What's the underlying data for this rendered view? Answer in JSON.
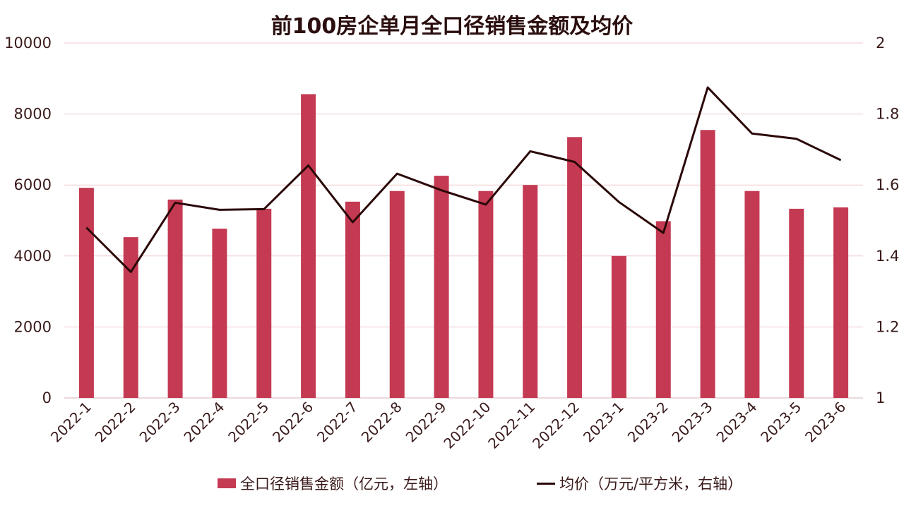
{
  "colors": {
    "bar": "#c43a52",
    "line": "#2b0808",
    "grid": "#f0c9cd",
    "axis": "#d9b3b7"
  },
  "chart_data": {
    "type": "bar",
    "title": "前100房企单月全口径销售金额及均价",
    "categories": [
      "2022-1",
      "2022-2",
      "2022-3",
      "2022-4",
      "2022-5",
      "2022-6",
      "2022-7",
      "2022-8",
      "2022-9",
      "2022-10",
      "2022-11",
      "2022-12",
      "2023-1",
      "2023-2",
      "2023-3",
      "2023-4",
      "2023-5",
      "2023-6"
    ],
    "series": [
      {
        "name": "全口径销售金额（亿元，左轴）",
        "type": "bar",
        "axis": "left",
        "values": [
          5920,
          4530,
          5590,
          4770,
          5330,
          8560,
          5530,
          5830,
          6260,
          5830,
          6000,
          7350,
          4000,
          4980,
          7550,
          5830,
          5330,
          5370
        ]
      },
      {
        "name": "均价（万元/平方米，右轴）",
        "type": "line",
        "axis": "right",
        "values": [
          1.48,
          1.355,
          1.55,
          1.53,
          1.532,
          1.655,
          1.495,
          1.632,
          1.585,
          1.545,
          1.695,
          1.665,
          1.552,
          1.465,
          1.875,
          1.745,
          1.73,
          1.67
        ]
      }
    ],
    "yleft": {
      "lim": [
        0,
        10000
      ],
      "ticks": [
        "0",
        "2000",
        "4000",
        "6000",
        "8000",
        "10000"
      ]
    },
    "yright": {
      "lim": [
        1,
        2
      ],
      "ticks": [
        "1",
        "1.2",
        "1.4",
        "1.6",
        "1.8",
        "2"
      ]
    },
    "grid": true,
    "legend_position": "bottom"
  }
}
